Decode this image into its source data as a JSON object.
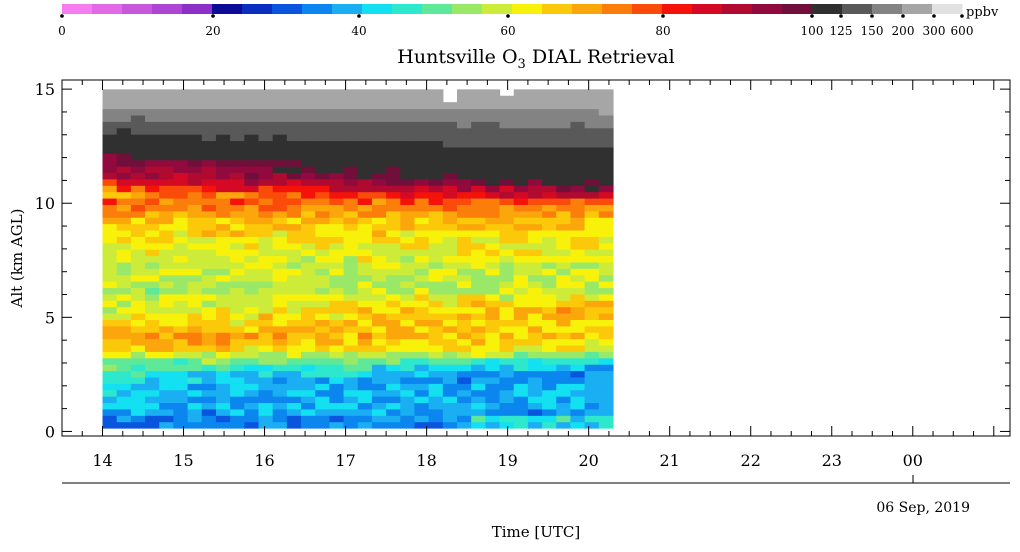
{
  "chart_data": {
    "type": "heatmap",
    "title": "Huntsville O",
    "title_sub": "3",
    "title_rest": " DIAL Retrieval",
    "ylabel": "Alt (km AGL)",
    "xlabel": "Time [UTC]",
    "date_label": "06 Sep, 2019",
    "x_range_hours": [
      13.5,
      25.2
    ],
    "data_x_range_hours": [
      14.0,
      20.3
    ],
    "ylim": [
      -0.2,
      15.4
    ],
    "y_ticks": [
      0,
      5,
      10,
      15
    ],
    "x_ticks": [
      "14",
      "15",
      "16",
      "17",
      "18",
      "19",
      "20",
      "21",
      "22",
      "23",
      "00"
    ],
    "colorbar": {
      "unit": "ppbv",
      "tick_labels": [
        "0",
        "20",
        "40",
        "60",
        "80",
        "100",
        "125",
        "150",
        "200",
        "300",
        "600"
      ],
      "colors": [
        "#f57df0",
        "#e36ae6",
        "#c957dc",
        "#ae44d2",
        "#8e2fc8",
        "#0b0b96",
        "#0a2fc0",
        "#0a55de",
        "#0a86ee",
        "#1aaef2",
        "#13e0f0",
        "#2de8cc",
        "#5ee89a",
        "#9ae868",
        "#cdec3a",
        "#f8f20a",
        "#fcc80a",
        "#fba60a",
        "#fb7e0a",
        "#fb4b0a",
        "#f4120a",
        "#d40a24",
        "#b00a30",
        "#900a3e",
        "#70103a",
        "#303030",
        "#595959",
        "#838383",
        "#a6a6a6",
        "#e1e1e1"
      ]
    },
    "profile_ppb_by_altitude_km": [
      {
        "alt": 0.2,
        "ppb": 33
      },
      {
        "alt": 0.8,
        "ppb": 37
      },
      {
        "alt": 1.5,
        "ppb": 40
      },
      {
        "alt": 2.1,
        "ppb": 42
      },
      {
        "alt": 2.8,
        "ppb": 50
      },
      {
        "alt": 3.5,
        "ppb": 62
      },
      {
        "alt": 4.2,
        "ppb": 64
      },
      {
        "alt": 5.0,
        "ppb": 60
      },
      {
        "alt": 6.0,
        "ppb": 56
      },
      {
        "alt": 7.0,
        "ppb": 58
      },
      {
        "alt": 8.0,
        "ppb": 62
      },
      {
        "alt": 9.0,
        "ppb": 66
      },
      {
        "alt": 9.6,
        "ppb": 72
      },
      {
        "alt": 10.2,
        "ppb": 80
      },
      {
        "alt": 10.9,
        "ppb": 95
      },
      {
        "alt": 12.0,
        "ppb": 110
      },
      {
        "alt": 13.5,
        "ppb": 150
      },
      {
        "alt": 15.0,
        "ppb": 300
      }
    ]
  }
}
